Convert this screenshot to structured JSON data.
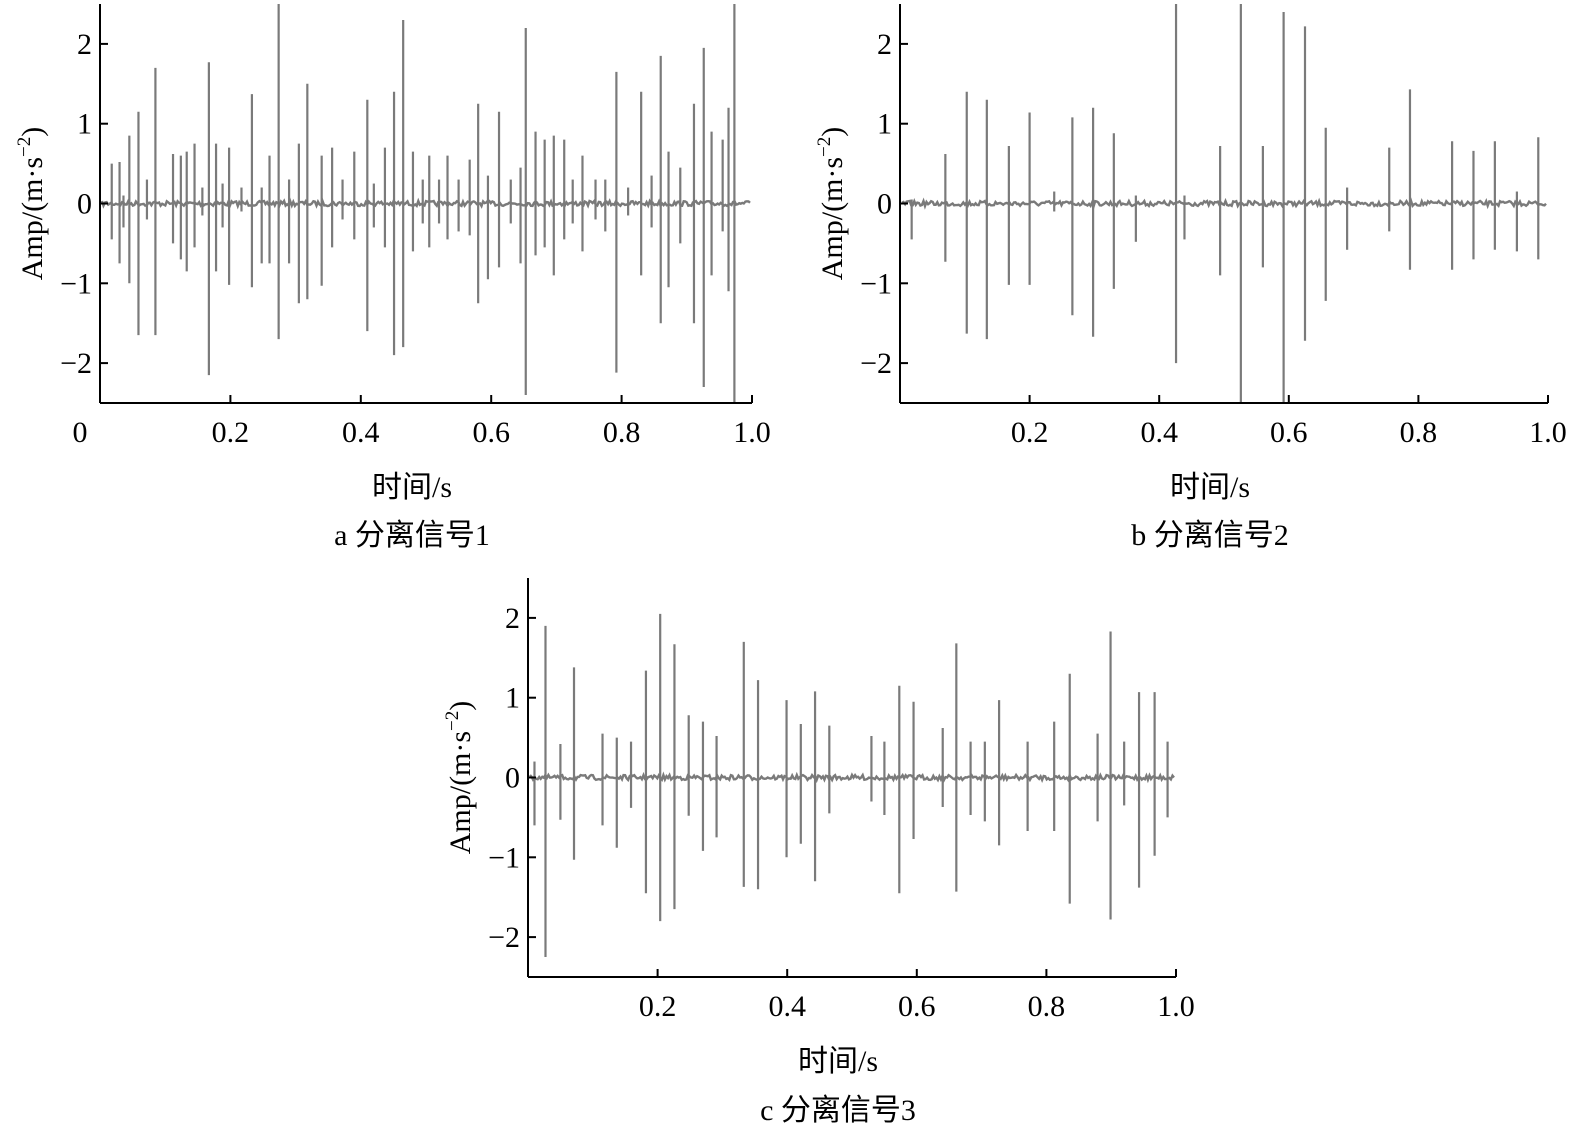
{
  "chart_data": [
    {
      "type": "line",
      "panel_label": "a",
      "title": "分离信号1",
      "xlabel": "时间/s",
      "ylabel": "Amp/(m·s",
      "ylabel_exp": "−2",
      "ylabel_close": ")",
      "xlim": [
        0,
        1.0
      ],
      "ylim": [
        -2.5,
        2.5
      ],
      "xticks": [
        0,
        0.2,
        0.4,
        0.6,
        0.8,
        1.0
      ],
      "xtick_labels": [
        "0",
        "0.2",
        "0.4",
        "0.6",
        "0.8",
        "1.0"
      ],
      "yticks": [
        -2,
        -1,
        0,
        1,
        2
      ],
      "ytick_labels": [
        "−2",
        "−1",
        "0",
        "1",
        "2"
      ],
      "grid": false,
      "series": [
        {
          "color": "#7a7a7a",
          "impulses": [
            [
              0.018,
              0.5,
              -0.45
            ],
            [
              0.03,
              0.52,
              -0.75
            ],
            [
              0.036,
              0.1,
              -0.3
            ],
            [
              0.045,
              0.85,
              -1.0
            ],
            [
              0.059,
              1.15,
              -1.65
            ],
            [
              0.072,
              0.3,
              -0.2
            ],
            [
              0.085,
              1.7,
              -1.65
            ],
            [
              0.112,
              0.62,
              -0.5
            ],
            [
              0.124,
              0.6,
              -0.7
            ],
            [
              0.133,
              0.65,
              -0.85
            ],
            [
              0.145,
              0.75,
              -0.55
            ],
            [
              0.157,
              0.2,
              -0.15
            ],
            [
              0.167,
              1.77,
              -2.15
            ],
            [
              0.178,
              0.75,
              -0.85
            ],
            [
              0.188,
              0.25,
              -0.3
            ],
            [
              0.198,
              0.7,
              -1.02
            ],
            [
              0.217,
              0.2,
              -0.1
            ],
            [
              0.233,
              1.37,
              -1.05
            ],
            [
              0.248,
              0.2,
              -0.75
            ],
            [
              0.26,
              0.6,
              -0.75
            ],
            [
              0.274,
              2.5,
              -1.7
            ],
            [
              0.29,
              0.3,
              -0.75
            ],
            [
              0.305,
              0.75,
              -1.25
            ],
            [
              0.318,
              1.5,
              -1.2
            ],
            [
              0.34,
              0.6,
              -1.03
            ],
            [
              0.356,
              0.7,
              -0.55
            ],
            [
              0.372,
              0.3,
              -0.2
            ],
            [
              0.39,
              0.65,
              -0.45
            ],
            [
              0.41,
              1.3,
              -1.6
            ],
            [
              0.42,
              0.25,
              -0.3
            ],
            [
              0.437,
              0.7,
              -0.55
            ],
            [
              0.451,
              1.4,
              -1.9
            ],
            [
              0.465,
              2.3,
              -1.8
            ],
            [
              0.48,
              0.65,
              -0.6
            ],
            [
              0.495,
              0.3,
              -0.25
            ],
            [
              0.505,
              0.6,
              -0.55
            ],
            [
              0.52,
              0.3,
              -0.25
            ],
            [
              0.533,
              0.6,
              -0.45
            ],
            [
              0.55,
              0.3,
              -0.35
            ],
            [
              0.567,
              0.55,
              -0.4
            ],
            [
              0.58,
              1.25,
              -1.25
            ],
            [
              0.595,
              0.35,
              -0.95
            ],
            [
              0.612,
              1.15,
              -0.8
            ],
            [
              0.63,
              0.3,
              -0.25
            ],
            [
              0.645,
              0.45,
              -0.75
            ],
            [
              0.653,
              2.2,
              -2.4
            ],
            [
              0.668,
              0.9,
              -0.65
            ],
            [
              0.682,
              0.8,
              -0.55
            ],
            [
              0.696,
              0.85,
              -0.9
            ],
            [
              0.712,
              0.8,
              -0.45
            ],
            [
              0.725,
              0.3,
              -0.25
            ],
            [
              0.74,
              0.6,
              -0.6
            ],
            [
              0.76,
              0.3,
              -0.2
            ],
            [
              0.775,
              0.3,
              -0.35
            ],
            [
              0.792,
              1.65,
              -2.12
            ],
            [
              0.81,
              0.2,
              -0.15
            ],
            [
              0.83,
              1.4,
              -0.9
            ],
            [
              0.846,
              0.35,
              -0.3
            ],
            [
              0.86,
              1.85,
              -1.5
            ],
            [
              0.872,
              0.65,
              -1.05
            ],
            [
              0.89,
              0.45,
              -0.5
            ],
            [
              0.911,
              1.25,
              -1.5
            ],
            [
              0.926,
              1.95,
              -2.3
            ],
            [
              0.938,
              0.9,
              -0.9
            ],
            [
              0.955,
              0.8,
              -0.35
            ],
            [
              0.964,
              1.2,
              -1.1
            ],
            [
              0.973,
              2.5,
              -2.5
            ]
          ]
        }
      ]
    },
    {
      "type": "line",
      "panel_label": "b",
      "title": "分离信号2",
      "xlabel": "时间/s",
      "ylabel": "Amp/(m·s",
      "ylabel_exp": "−2",
      "ylabel_close": ")",
      "xlim": [
        0,
        1.0
      ],
      "ylim": [
        -2.5,
        2.5
      ],
      "xticks": [
        0.2,
        0.4,
        0.6,
        0.8,
        1.0
      ],
      "xtick_labels": [
        "0.2",
        "0.4",
        "0.6",
        "0.8",
        "1.0"
      ],
      "yticks": [
        -2,
        -1,
        0,
        1,
        2
      ],
      "ytick_labels": [
        "−2",
        "−1",
        "0",
        "1",
        "2"
      ],
      "grid": false,
      "series": [
        {
          "color": "#7a7a7a",
          "impulses": [
            [
              0.018,
              0.05,
              -0.45
            ],
            [
              0.07,
              0.62,
              -0.73
            ],
            [
              0.103,
              1.4,
              -1.63
            ],
            [
              0.134,
              1.3,
              -1.7
            ],
            [
              0.168,
              0.72,
              -1.02
            ],
            [
              0.2,
              1.14,
              -1.02
            ],
            [
              0.238,
              0.15,
              -0.1
            ],
            [
              0.266,
              1.08,
              -1.4
            ],
            [
              0.298,
              1.2,
              -1.67
            ],
            [
              0.33,
              0.88,
              -1.07
            ],
            [
              0.364,
              0.1,
              -0.48
            ],
            [
              0.426,
              2.5,
              -2.0
            ],
            [
              0.439,
              0.1,
              -0.45
            ],
            [
              0.494,
              0.72,
              -0.9
            ],
            [
              0.526,
              2.5,
              -2.5
            ],
            [
              0.56,
              0.72,
              -0.8
            ],
            [
              0.592,
              2.4,
              -2.5
            ],
            [
              0.625,
              2.22,
              -1.72
            ],
            [
              0.657,
              0.95,
              -1.22
            ],
            [
              0.69,
              0.2,
              -0.58
            ],
            [
              0.755,
              0.7,
              -0.35
            ],
            [
              0.787,
              1.43,
              -0.83
            ],
            [
              0.852,
              0.78,
              -0.83
            ],
            [
              0.885,
              0.66,
              -0.7
            ],
            [
              0.918,
              0.78,
              -0.58
            ],
            [
              0.952,
              0.15,
              -0.6
            ],
            [
              0.985,
              0.83,
              -0.7
            ]
          ]
        }
      ]
    },
    {
      "type": "line",
      "panel_label": "c",
      "title": "分离信号3",
      "xlabel": "时间/s",
      "ylabel": "Amp/(m·s",
      "ylabel_exp": "−2",
      "ylabel_close": ")",
      "xlim": [
        0,
        1.0
      ],
      "ylim": [
        -2.5,
        2.5
      ],
      "xticks": [
        0.2,
        0.4,
        0.6,
        0.8,
        1.0
      ],
      "xtick_labels": [
        "0.2",
        "0.4",
        "0.6",
        "0.8",
        "1.0"
      ],
      "yticks": [
        -2,
        -1,
        0,
        1,
        2
      ],
      "ytick_labels": [
        "−2",
        "−1",
        "0",
        "1",
        "2"
      ],
      "grid": false,
      "series": [
        {
          "color": "#7a7a7a",
          "impulses": [
            [
              0.01,
              0.2,
              -0.6
            ],
            [
              0.027,
              1.9,
              -2.25
            ],
            [
              0.05,
              0.42,
              -0.53
            ],
            [
              0.071,
              1.38,
              -1.03
            ],
            [
              0.115,
              0.55,
              -0.6
            ],
            [
              0.137,
              0.5,
              -0.88
            ],
            [
              0.159,
              0.45,
              -0.38
            ],
            [
              0.182,
              1.34,
              -1.45
            ],
            [
              0.204,
              2.05,
              -1.8
            ],
            [
              0.226,
              1.67,
              -1.65
            ],
            [
              0.248,
              0.78,
              -0.48
            ],
            [
              0.27,
              0.7,
              -0.92
            ],
            [
              0.291,
              0.52,
              -0.75
            ],
            [
              0.333,
              1.7,
              -1.37
            ],
            [
              0.355,
              1.22,
              -1.4
            ],
            [
              0.399,
              0.97,
              -1.0
            ],
            [
              0.421,
              0.67,
              -0.83
            ],
            [
              0.443,
              1.08,
              -1.3
            ],
            [
              0.465,
              0.65,
              -0.45
            ],
            [
              0.53,
              0.52,
              -0.3
            ],
            [
              0.55,
              0.45,
              -0.47
            ],
            [
              0.573,
              1.15,
              -1.45
            ],
            [
              0.595,
              0.95,
              -0.77
            ],
            [
              0.661,
              1.68,
              -1.43
            ],
            [
              0.64,
              0.62,
              -0.37
            ],
            [
              0.683,
              0.45,
              -0.47
            ],
            [
              0.705,
              0.45,
              -0.55
            ],
            [
              0.727,
              0.97,
              -0.85
            ],
            [
              0.771,
              0.45,
              -0.67
            ],
            [
              0.812,
              0.7,
              -0.67
            ],
            [
              0.836,
              1.3,
              -1.58
            ],
            [
              0.879,
              0.55,
              -0.55
            ],
            [
              0.899,
              1.83,
              -1.78
            ],
            [
              0.92,
              0.45,
              -0.35
            ],
            [
              0.943,
              1.07,
              -1.38
            ],
            [
              0.967,
              1.07,
              -0.98
            ],
            [
              0.987,
              0.45,
              -0.5
            ]
          ]
        }
      ]
    }
  ]
}
